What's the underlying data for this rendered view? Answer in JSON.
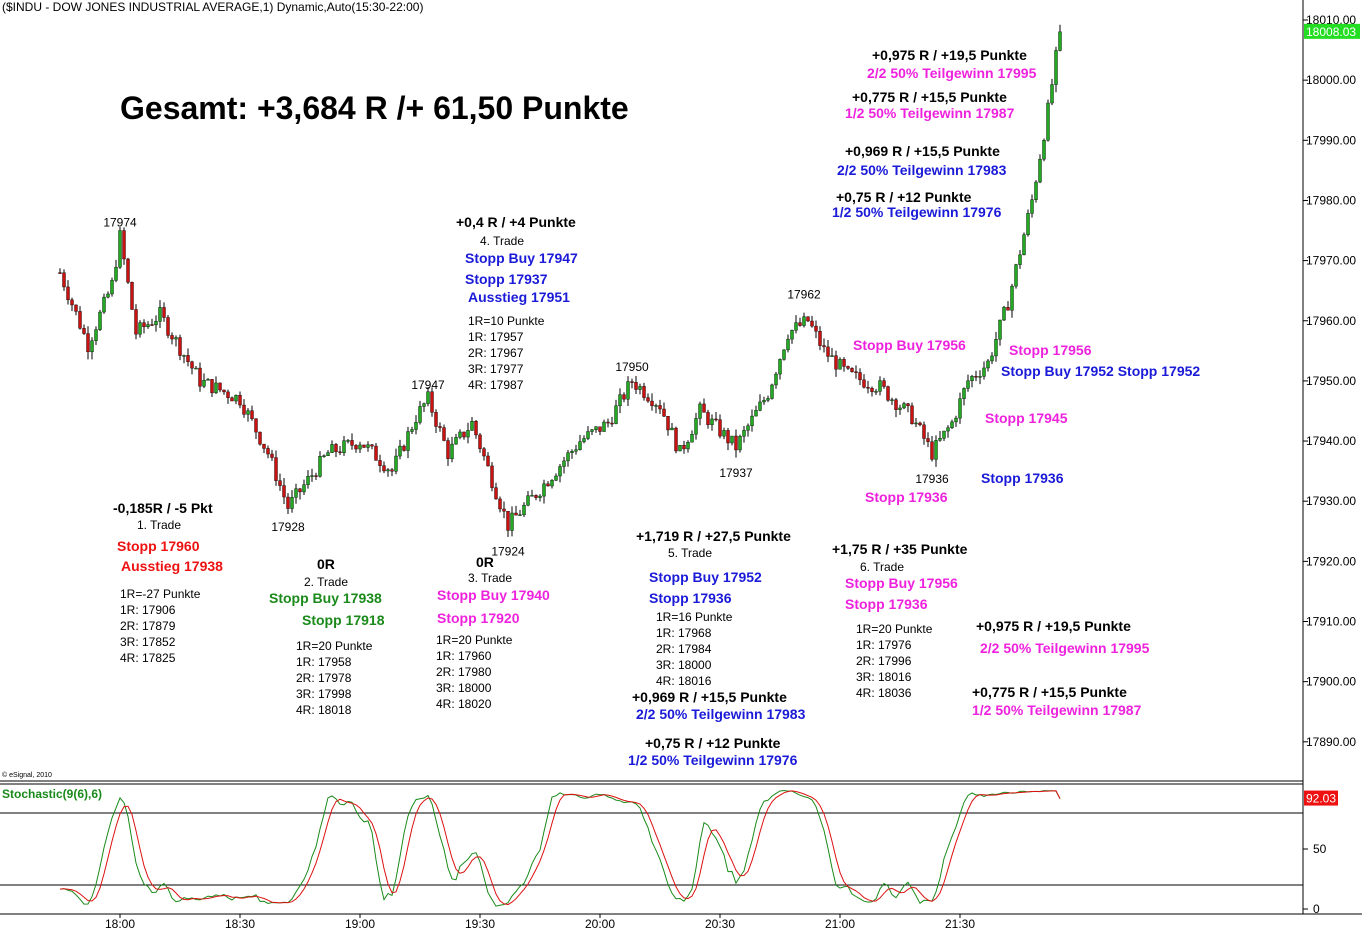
{
  "header": {
    "title": "($INDU - DOW JONES INDUSTRIAL AVERAGE,1) Dynamic,Auto(15:30-22:00)",
    "copyright": "© eSignal, 2010",
    "total": "Gesamt: +3,684 R /+ 61,50 Punkte"
  },
  "price_panel": {
    "last_price": "18008.03",
    "y_ticks": [
      "18010.00",
      "18000.00",
      "17990.00",
      "17980.00",
      "17970.00",
      "17960.00",
      "17950.00",
      "17940.00",
      "17930.00",
      "17920.00",
      "17910.00",
      "17900.00",
      "17890.00"
    ],
    "swing_labels": [
      "17974",
      "17928",
      "17947",
      "17924",
      "17950",
      "17937",
      "17962",
      "17936"
    ]
  },
  "stoch_panel": {
    "title": "Stochastic(9(6),6)",
    "last_value": "92.03",
    "y_ticks": [
      "50",
      "0"
    ]
  },
  "x_axis": {
    "ticks": [
      "18:00",
      "18:30",
      "19:00",
      "19:30",
      "20:00",
      "20:30",
      "21:00",
      "21:30"
    ]
  },
  "colors": {
    "candle_up": "#22aa22",
    "candle_down": "#cc1111",
    "stoch_k": "#1a8a1a",
    "stoch_d": "#dd1111",
    "last_price_bg": "#22dd22",
    "stoch_last_bg": "#ee1111"
  },
  "trades": {
    "t1": {
      "result": "-0,185R / -5 Pkt",
      "name": "1. Trade",
      "stop": "Stopp 17960",
      "exit": "Ausstieg 17938",
      "levels": [
        "1R=-27 Punkte",
        "1R: 17906",
        "2R: 17879",
        "3R: 17852",
        "4R: 17825"
      ]
    },
    "t2": {
      "result": "0R",
      "name": "2. Trade",
      "entry": "Stopp Buy 17938",
      "stop": "Stopp 17918",
      "levels": [
        "1R=20 Punkte",
        "1R: 17958",
        "2R: 17978",
        "3R: 17998",
        "4R: 18018"
      ]
    },
    "t3": {
      "result": "0R",
      "name": "3. Trade",
      "entry": "Stopp Buy 17940",
      "stop": "Stopp 17920",
      "levels": [
        "1R=20 Punkte",
        "1R: 17960",
        "2R: 17980",
        "3R: 18000",
        "4R: 18020"
      ]
    },
    "t4": {
      "result": "+0,4 R / +4 Punkte",
      "name": "4. Trade",
      "entry": "Stopp Buy 17947",
      "stop": "Stopp 17937",
      "exit": "Ausstieg 17951",
      "levels": [
        "1R=10 Punkte",
        "1R: 17957",
        "2R: 17967",
        "3R: 17977",
        "4R: 17987"
      ]
    },
    "t5": {
      "result": "+1,719 R / +27,5 Punkte",
      "name": "5. Trade",
      "entry": "Stopp Buy 17952",
      "stop": "Stopp 17936",
      "levels": [
        "1R=16 Punkte",
        "1R: 17968",
        "2R: 17984",
        "3R: 18000",
        "4R: 18016"
      ],
      "exit2_result": "+0,969 R / +15,5 Punkte",
      "exit2": "2/2 50% Teilgewinn 17983",
      "exit1_result": "+0,75 R / +12 Punkte",
      "exit1": "1/2 50% Teilgewinn 17976"
    },
    "t6": {
      "result": "+1,75 R / +35 Punkte",
      "name": "6. Trade",
      "entry": "Stopp Buy 17956",
      "stop": "Stopp 17936",
      "levels": [
        "1R=20 Punkte",
        "1R: 17976",
        "2R: 17996",
        "3R: 18016",
        "4R: 18036"
      ],
      "exit2_result": "+0,975 R / +19,5 Punkte",
      "exit2": "2/2 50% Teilgewinn 17995",
      "exit1_result": "+0,775 R / +15,5 Punkte",
      "exit1": "1/2 50% Teilgewinn 17987"
    }
  },
  "chart_notes": {
    "top_a_result": "+0,975 R / +19,5 Punkte",
    "top_a_text": "2/2 50% Teilgewinn 17995",
    "top_b_result": "+0,775 R / +15,5 Punkte",
    "top_b_text": "1/2 50% Teilgewinn 17987",
    "top_c_result": "+0,969 R / +15,5 Punkte",
    "top_c_text": "2/2 50% Teilgewinn 17983",
    "top_d_result": "+0,75 R / +12 Punkte",
    "top_d_text": "1/2 50% Teilgewinn 17976",
    "stopp_buy_17956": "Stopp Buy 17956",
    "stopp_17956": "Stopp 17956",
    "stopp_buy_17952_stopp_17952": "Stopp Buy 17952 Stopp 17952",
    "stopp_17945": "Stopp 17945",
    "stopp_17936_blue": "Stopp 17936",
    "stopp_17936_magenta": "Stopp 17936"
  },
  "chart_data": {
    "type": "candlestick",
    "title": "($INDU - DOW JONES INDUSTRIAL AVERAGE,1) Dynamic,Auto(15:30-22:00)",
    "x_unit": "minute bars",
    "ylim": [
      17880,
      18015
    ],
    "waypoints": [
      {
        "time": "17:45",
        "price": 17968
      },
      {
        "time": "17:52",
        "price": 17956
      },
      {
        "time": "17:58",
        "price": 17966
      },
      {
        "time": "18:00",
        "price": 17974
      },
      {
        "time": "18:04",
        "price": 17958
      },
      {
        "time": "18:10",
        "price": 17961
      },
      {
        "time": "18:20",
        "price": 17950
      },
      {
        "time": "18:30",
        "price": 17947
      },
      {
        "time": "18:37",
        "price": 17938
      },
      {
        "time": "18:42",
        "price": 17929
      },
      {
        "time": "18:52",
        "price": 17938
      },
      {
        "time": "19:00",
        "price": 17940
      },
      {
        "time": "19:08",
        "price": 17935
      },
      {
        "time": "19:14",
        "price": 17944
      },
      {
        "time": "19:17",
        "price": 17947
      },
      {
        "time": "19:22",
        "price": 17938
      },
      {
        "time": "19:28",
        "price": 17943
      },
      {
        "time": "19:37",
        "price": 17926
      },
      {
        "time": "19:45",
        "price": 17932
      },
      {
        "time": "19:55",
        "price": 17940
      },
      {
        "time": "20:02",
        "price": 17943
      },
      {
        "time": "20:08",
        "price": 17950
      },
      {
        "time": "20:15",
        "price": 17946
      },
      {
        "time": "20:20",
        "price": 17938
      },
      {
        "time": "20:25",
        "price": 17945
      },
      {
        "time": "20:34",
        "price": 17939
      },
      {
        "time": "20:42",
        "price": 17948
      },
      {
        "time": "20:47",
        "price": 17958
      },
      {
        "time": "20:52",
        "price": 17960
      },
      {
        "time": "20:56",
        "price": 17955
      },
      {
        "time": "21:02",
        "price": 17951
      },
      {
        "time": "21:10",
        "price": 17949
      },
      {
        "time": "21:18",
        "price": 17944
      },
      {
        "time": "21:23",
        "price": 17938
      },
      {
        "time": "21:28",
        "price": 17943
      },
      {
        "time": "21:32",
        "price": 17950
      },
      {
        "time": "21:37",
        "price": 17953
      },
      {
        "time": "21:42",
        "price": 17963
      },
      {
        "time": "21:48",
        "price": 17980
      },
      {
        "time": "21:52",
        "price": 17995
      },
      {
        "time": "21:55",
        "price": 18008
      }
    ],
    "swing_points": [
      {
        "time": "18:00",
        "price": 17974
      },
      {
        "time": "18:42",
        "price": 17928
      },
      {
        "time": "19:17",
        "price": 17947
      },
      {
        "time": "19:37",
        "price": 17924
      },
      {
        "time": "20:08",
        "price": 17950
      },
      {
        "time": "20:34",
        "price": 17937
      },
      {
        "time": "20:51",
        "price": 17962
      },
      {
        "time": "21:23",
        "price": 17936
      }
    ],
    "last_price": 18008.03,
    "stochastic": {
      "name": "Stochastic(9(6),6)",
      "last_value": 92.03,
      "levels": [
        20,
        80
      ],
      "ylim": [
        0,
        100
      ]
    }
  }
}
